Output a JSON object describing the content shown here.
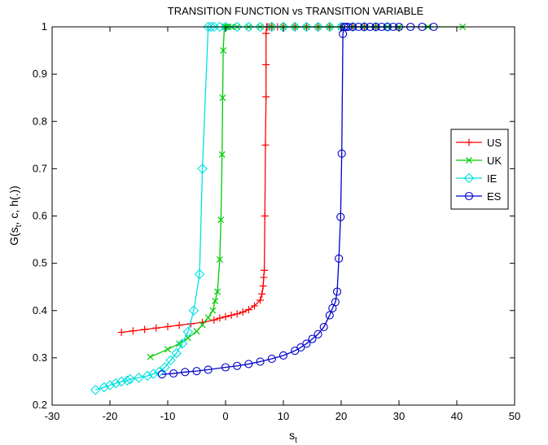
{
  "chart_data": {
    "type": "line",
    "title": "TRANSITION FUNCTION vs TRANSITION VARIABLE",
    "xlabel_main": "s",
    "xlabel_sub": "t",
    "ylabel_pre": "G(s",
    "ylabel_sub": "t",
    "ylabel_post": ", c, h(.))",
    "xlim": [
      -30,
      50
    ],
    "ylim": [
      0.2,
      1.0
    ],
    "xticks": [
      "-30",
      "-20",
      "-10",
      "0",
      "10",
      "20",
      "30",
      "40",
      "50"
    ],
    "yticks": [
      "0.2",
      "0.3",
      "0.4",
      "0.5",
      "0.6",
      "0.7",
      "0.8",
      "0.9",
      "1"
    ],
    "grid": false,
    "legend_position": "right",
    "series": [
      {
        "name": "US",
        "color": "#ff0000",
        "marker": "plus",
        "x": [
          -18,
          -16,
          -14,
          -12,
          -10,
          -8,
          -6,
          -4,
          -2,
          -1,
          0,
          1,
          2,
          3,
          4,
          5,
          6,
          6.3,
          6.5,
          6.6,
          6.7,
          6.8,
          6.9,
          7.0,
          7.0,
          7.0,
          7.1,
          7.2,
          7.5,
          8,
          9,
          10,
          12,
          14,
          16,
          18,
          20,
          22,
          24,
          26
        ],
        "y": [
          0.354,
          0.357,
          0.36,
          0.363,
          0.366,
          0.369,
          0.372,
          0.375,
          0.38,
          0.384,
          0.387,
          0.39,
          0.393,
          0.397,
          0.402,
          0.41,
          0.422,
          0.435,
          0.452,
          0.47,
          0.485,
          0.6,
          0.75,
          0.852,
          0.92,
          0.986,
          1,
          1,
          1,
          1,
          1,
          1,
          1,
          1,
          1,
          1,
          1,
          1,
          1,
          1
        ]
      },
      {
        "name": "UK",
        "color": "#00cc00",
        "marker": "x",
        "x": [
          -13,
          -10,
          -8,
          -6.5,
          -5,
          -4,
          -3,
          -2.2,
          -1.8,
          -1.4,
          -1,
          -0.8,
          -0.6,
          -0.5,
          -0.4,
          -0.2,
          -0.1,
          0,
          0.2,
          0.5,
          1,
          2,
          4,
          6,
          8,
          10,
          12,
          14,
          16,
          18,
          20,
          22,
          24,
          26,
          28,
          30,
          35,
          41
        ],
        "y": [
          0.302,
          0.318,
          0.33,
          0.342,
          0.356,
          0.37,
          0.385,
          0.4,
          0.42,
          0.44,
          0.508,
          0.592,
          0.73,
          0.85,
          0.95,
          1,
          1,
          1,
          1,
          1,
          1,
          1,
          1,
          1,
          1,
          1,
          1,
          1,
          1,
          1,
          1,
          1,
          1,
          1,
          1,
          1,
          1,
          1
        ]
      },
      {
        "name": "IE",
        "color": "#00e0e0",
        "marker": "diamond",
        "x": [
          -22.5,
          -21,
          -20,
          -19,
          -18,
          -17,
          -16.5,
          -15,
          -13.5,
          -12.5,
          -11.5,
          -10.5,
          -9.5,
          -8.5,
          -7.5,
          -6.5,
          -5.5,
          -4.5,
          -4,
          -3,
          -2.5,
          -2,
          -1,
          0,
          2,
          4,
          6,
          8,
          10,
          12,
          14,
          16,
          18,
          20,
          22,
          24,
          26,
          28
        ],
        "y": [
          0.232,
          0.238,
          0.242,
          0.246,
          0.25,
          0.252,
          0.255,
          0.258,
          0.262,
          0.266,
          0.27,
          0.28,
          0.295,
          0.31,
          0.33,
          0.355,
          0.4,
          0.477,
          0.7,
          1,
          1,
          1,
          1,
          1,
          1,
          1,
          1,
          1,
          1,
          1,
          1,
          1,
          1,
          1,
          1,
          1,
          1,
          1
        ]
      },
      {
        "name": "ES",
        "color": "#0000cc",
        "marker": "circle",
        "x": [
          -11,
          -9,
          -7,
          -5,
          -3,
          0,
          2,
          4,
          6,
          8,
          10,
          12,
          13,
          14,
          15,
          16,
          17,
          18,
          18.5,
          19,
          19.3,
          19.6,
          19.9,
          20.1,
          20.3,
          20.5,
          20.8,
          21.2,
          22,
          23,
          24,
          25,
          26,
          27,
          28,
          29,
          30,
          32,
          34,
          36
        ],
        "y": [
          0.265,
          0.267,
          0.27,
          0.272,
          0.275,
          0.28,
          0.283,
          0.287,
          0.292,
          0.298,
          0.305,
          0.315,
          0.322,
          0.33,
          0.34,
          0.35,
          0.365,
          0.39,
          0.405,
          0.418,
          0.44,
          0.51,
          0.598,
          0.732,
          0.985,
          1,
          1,
          1,
          1,
          1,
          1,
          1,
          1,
          1,
          1,
          1,
          1,
          1,
          1,
          1
        ]
      }
    ]
  }
}
